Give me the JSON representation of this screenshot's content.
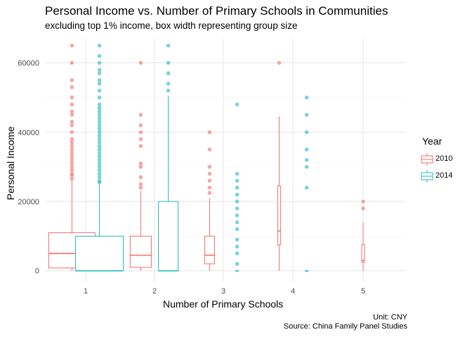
{
  "title": "Personal Income vs. Number of Primary Schools in Communities",
  "subtitle": "excluding top 1% income, box width representing group size",
  "caption": [
    "Unit: CNY",
    "Source: China Family Panel Studies"
  ],
  "colors": {
    "2010": "#f26d6d",
    "2014": "#22b8bf"
  },
  "chart_data": {
    "type": "boxplot",
    "xlabel": "Number of Primary Schools",
    "ylabel": "Personal Income",
    "categories": [
      "1",
      "2",
      "3",
      "4",
      "5"
    ],
    "y_ticks": [
      0,
      20000,
      40000,
      60000
    ],
    "y_tick_labels": [
      "0",
      "20000",
      "40000",
      "60000"
    ],
    "ylim": [
      0,
      67000
    ],
    "grid": true,
    "legend": {
      "title": "Year",
      "position": "right",
      "entries": [
        "2010",
        "2014"
      ]
    },
    "series": [
      {
        "name": "2010",
        "groups": [
          {
            "category": "1",
            "q1": 800,
            "median": 5000,
            "q3": 11000,
            "whisker_low": 0,
            "whisker_high": 26000,
            "outliers": [
              26500,
              27500,
              28000,
              29000,
              30000,
              31000,
              32000,
              33000,
              34000,
              35000,
              36000,
              37000,
              38000,
              40000,
              42000,
              43000,
              45000,
              46000,
              48000,
              50000,
              53000,
              55000,
              60000,
              65000
            ]
          },
          {
            "category": "2",
            "q1": 1000,
            "median": 4500,
            "q3": 10000,
            "whisker_low": 0,
            "whisker_high": 23000,
            "outliers": [
              24000,
              25000,
              27000,
              30000,
              31000,
              36000,
              38000,
              40000,
              42000,
              45000,
              60000
            ]
          },
          {
            "category": "3",
            "q1": 2000,
            "median": 4500,
            "q3": 10000,
            "whisker_low": 0,
            "whisker_high": 21000,
            "outliers": [
              22500,
              24000,
              26000,
              28000,
              30000,
              35000,
              40000
            ]
          },
          {
            "category": "4",
            "q1": 7500,
            "median": 11500,
            "q3": 24500,
            "whisker_low": 0,
            "whisker_high": 44500,
            "outliers": [
              60000
            ]
          },
          {
            "category": "5",
            "q1": 2500,
            "median": 3000,
            "q3": 7500,
            "whisker_low": 0,
            "whisker_high": 14000,
            "outliers": [
              18000,
              20000
            ]
          }
        ]
      },
      {
        "name": "2014",
        "groups": [
          {
            "category": "1",
            "q1": 0,
            "median": 0,
            "q3": 10000,
            "whisker_low": 0,
            "whisker_high": 25000,
            "outliers": [
              25500,
              26000,
              27000,
              28000,
              29000,
              30000,
              31000,
              32000,
              33000,
              34000,
              35000,
              36000,
              37000,
              38000,
              39000,
              40000,
              41000,
              42000,
              43000,
              44000,
              45000,
              46000,
              47000,
              48000,
              50000,
              52000,
              54000,
              55000,
              57000,
              58000,
              60000,
              62000,
              65000
            ]
          },
          {
            "category": "2",
            "q1": 0,
            "median": 0,
            "q3": 20000,
            "whisker_low": 0,
            "whisker_high": 50500,
            "outliers": [
              52000,
              54000,
              57000,
              60000,
              65000
            ]
          },
          {
            "category": "3",
            "q1": 0,
            "median": 0,
            "q3": 0,
            "whisker_low": 0,
            "whisker_high": 0,
            "outliers": [
              2000,
              5000,
              7000,
              9000,
              12000,
              14000,
              16000,
              18000,
              20000,
              22000,
              24000,
              26000,
              28000,
              48000
            ]
          },
          {
            "category": "4",
            "q1": 0,
            "median": 0,
            "q3": 0,
            "whisker_low": 0,
            "whisker_high": 0,
            "outliers": [
              24000,
              30000,
              32000,
              35000,
              40000,
              45000,
              50000
            ]
          }
        ]
      }
    ]
  }
}
